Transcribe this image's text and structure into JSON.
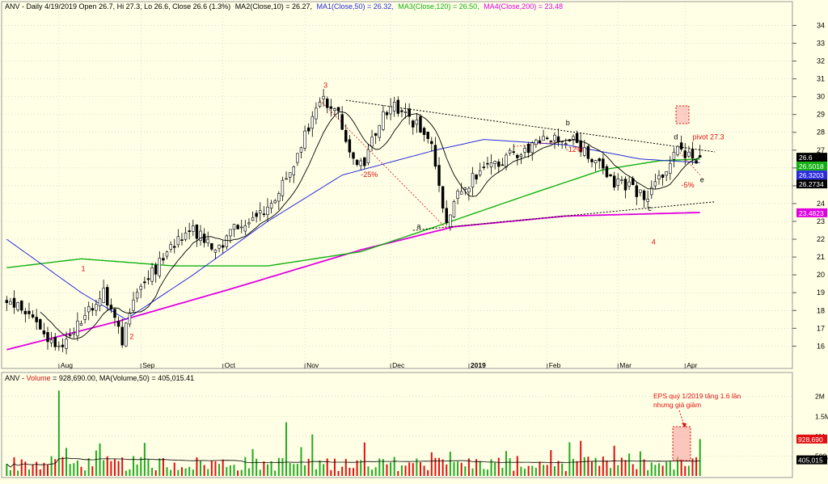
{
  "colors": {
    "background": "#FFFFE6",
    "ma10": "#000000",
    "ma50": "#2A2AE0",
    "ma120": "#12B012",
    "ma200": "#E000E0",
    "annotation": "#E01010",
    "volume_up": "#22AA22",
    "volume_down": "#E01010",
    "grid": "#B8B8B8"
  },
  "price_panel": {
    "header": {
      "prefix": "ANV - Daily 4/19/2019 Open 26.7, Hi 27.3, Lo 26.6, Close 26.6 (1.3%)",
      "ma10": "MA2(Close,10) = 26.27,",
      "ma50": "MA1(Close,50) = 26.32,",
      "ma120": "MA3(Close,120) = 26.50,",
      "ma200": "MA4(Close,200) = 23.48"
    },
    "y_ticks": [
      "16",
      "17",
      "18",
      "19",
      "20",
      "21",
      "22",
      "23",
      "24",
      "25",
      "26",
      "27",
      "28",
      "29",
      "30",
      "31",
      "32",
      "33",
      "34"
    ],
    "x_ticks": [
      "Aug",
      "Sep",
      "Oct",
      "Nov",
      "Dec",
      "2019",
      "Feb",
      "Mar",
      "Apr"
    ],
    "price_badges": [
      {
        "text": "26.6",
        "value": 26.6,
        "color": "#000000"
      },
      {
        "text": "26.5018",
        "value": 26.5018,
        "color": "#12B012"
      },
      {
        "text": "26.3203",
        "value": 26.3203,
        "color": "#2A2AE0"
      },
      {
        "text": "26.2734",
        "value": 26.2734,
        "color": "#000000"
      },
      {
        "text": "23.4823",
        "value": 23.4823,
        "color": "#E000E0"
      }
    ],
    "annotations": [
      {
        "text": "1",
        "date_index": 20,
        "price": 20.2,
        "color": "#E01010"
      },
      {
        "text": "2",
        "date_index": 33,
        "price": 16.4,
        "color": "#E01010"
      },
      {
        "text": "3",
        "date_index": 85,
        "price": 30.5,
        "color": "#E01010"
      },
      {
        "text": "-25%",
        "date_index": 95,
        "price": 25.5,
        "color": "#E01010"
      },
      {
        "text": "a",
        "date_index": 110,
        "price": 22.6,
        "color": "#000000"
      },
      {
        "text": "-12%",
        "date_index": 150,
        "price": 26.9,
        "color": "#E01010"
      },
      {
        "text": "b",
        "date_index": 150,
        "price": 28.4,
        "color": "#000000"
      },
      {
        "text": "c",
        "date_index": 172,
        "price": 23.6,
        "color": "#000000"
      },
      {
        "text": "4",
        "date_index": 173,
        "price": 21.7,
        "color": "#E01010"
      },
      {
        "text": "d",
        "date_index": 179,
        "price": 27.6,
        "color": "#000000"
      },
      {
        "text": "pivot 27.3",
        "date_index": 184,
        "price": 27.6,
        "color": "#E01010"
      },
      {
        "text": "-5%",
        "date_index": 181,
        "price": 24.9,
        "color": "#E01010"
      },
      {
        "text": "e",
        "date_index": 186,
        "price": 25.2,
        "color": "#000000"
      }
    ]
  },
  "volume_panel": {
    "header": {
      "prefix": "ANV - ",
      "volume": "Volume",
      "rest": " = 928,690.00, MA(Volume,50) = 405,015.41"
    },
    "y_ticks": [
      "2M",
      "1.5M",
      "1M",
      "500,000"
    ],
    "volume_badges": [
      {
        "text": "928,690",
        "value": 928690,
        "color": "#E01010"
      },
      {
        "text": "405,015",
        "value": 405015,
        "color": "#000000"
      }
    ],
    "note_line1": "EPS quý 1/2019 tăng 1.6 lần",
    "note_line2": "nhưng giá giảm"
  },
  "chart_data": {
    "type": "candlestick",
    "price_ylim": [
      15.2,
      34.7
    ],
    "volume_ylim": [
      0,
      2300000
    ],
    "moving_averages": [
      "MA(Close,10)",
      "MA(Close,50)",
      "MA(Close,120)",
      "MA(Close,200)"
    ],
    "last_bar": {
      "date": "4/19/2019",
      "open": 26.7,
      "high": 27.3,
      "low": 26.6,
      "close": 26.6,
      "change_pct": 1.3,
      "volume": 928690
    },
    "last_values": {
      "ma10": 26.27,
      "ma50": 26.32,
      "ma120": 26.5,
      "ma200": 23.48,
      "volume_ma50": 405015.41
    },
    "trendlines": [
      {
        "style": "dotted",
        "from": {
          "date_index": 91,
          "price": 29.8
        },
        "to": {
          "date_index": 190,
          "price": 26.9
        }
      },
      {
        "style": "dotted",
        "from": {
          "date_index": 109,
          "price": 22.5
        },
        "to": {
          "date_index": 190,
          "price": 24.1
        }
      }
    ],
    "series_keypoints": [
      {
        "date_index": 0,
        "price": 18.7
      },
      {
        "date_index": 8,
        "price": 17.4
      },
      {
        "date_index": 14,
        "price": 15.7
      },
      {
        "date_index": 22,
        "price": 18.0
      },
      {
        "date_index": 26,
        "price": 19.0
      },
      {
        "date_index": 31,
        "price": 16.4
      },
      {
        "date_index": 34,
        "price": 18.5
      },
      {
        "date_index": 42,
        "price": 21.0
      },
      {
        "date_index": 50,
        "price": 22.6
      },
      {
        "date_index": 56,
        "price": 21.3
      },
      {
        "date_index": 62,
        "price": 22.8
      },
      {
        "date_index": 70,
        "price": 23.5
      },
      {
        "date_index": 78,
        "price": 26.8
      },
      {
        "date_index": 84,
        "price": 29.8
      },
      {
        "date_index": 88,
        "price": 29.6
      },
      {
        "date_index": 92,
        "price": 26.8
      },
      {
        "date_index": 96,
        "price": 26.1
      },
      {
        "date_index": 100,
        "price": 28.7
      },
      {
        "date_index": 104,
        "price": 29.4
      },
      {
        "date_index": 110,
        "price": 28.4
      },
      {
        "date_index": 114,
        "price": 27.4
      },
      {
        "date_index": 118,
        "price": 22.6
      },
      {
        "date_index": 121,
        "price": 24.6
      },
      {
        "date_index": 126,
        "price": 25.6
      },
      {
        "date_index": 132,
        "price": 26.4
      },
      {
        "date_index": 140,
        "price": 27.1
      },
      {
        "date_index": 146,
        "price": 27.6
      },
      {
        "date_index": 152,
        "price": 27.5
      },
      {
        "date_index": 158,
        "price": 26.4
      },
      {
        "date_index": 163,
        "price": 25.2
      },
      {
        "date_index": 168,
        "price": 24.9
      },
      {
        "date_index": 172,
        "price": 24.2
      },
      {
        "date_index": 176,
        "price": 25.8
      },
      {
        "date_index": 180,
        "price": 27.0
      },
      {
        "date_index": 183,
        "price": 26.6
      },
      {
        "date_index": 186,
        "price": 26.6
      }
    ],
    "ma_keypoints": {
      "ma50": [
        {
          "date_index": 0,
          "price": 22.0
        },
        {
          "date_index": 20,
          "price": 19.0
        },
        {
          "date_index": 32,
          "price": 17.5
        },
        {
          "date_index": 50,
          "price": 20.0
        },
        {
          "date_index": 70,
          "price": 23.0
        },
        {
          "date_index": 90,
          "price": 25.6
        },
        {
          "date_index": 115,
          "price": 27.0
        },
        {
          "date_index": 128,
          "price": 27.6
        },
        {
          "date_index": 150,
          "price": 27.3
        },
        {
          "date_index": 170,
          "price": 26.5
        },
        {
          "date_index": 186,
          "price": 26.3
        }
      ],
      "ma120": [
        {
          "date_index": 0,
          "price": 20.4
        },
        {
          "date_index": 20,
          "price": 20.9
        },
        {
          "date_index": 45,
          "price": 20.5
        },
        {
          "date_index": 70,
          "price": 20.5
        },
        {
          "date_index": 95,
          "price": 21.3
        },
        {
          "date_index": 115,
          "price": 22.7
        },
        {
          "date_index": 140,
          "price": 24.5
        },
        {
          "date_index": 160,
          "price": 25.9
        },
        {
          "date_index": 175,
          "price": 26.4
        },
        {
          "date_index": 186,
          "price": 26.5
        }
      ],
      "ma200": [
        {
          "date_index": 0,
          "price": 15.8
        },
        {
          "date_index": 30,
          "price": 17.4
        },
        {
          "date_index": 60,
          "price": 19.2
        },
        {
          "date_index": 95,
          "price": 21.4
        },
        {
          "date_index": 120,
          "price": 22.7
        },
        {
          "date_index": 150,
          "price": 23.3
        },
        {
          "date_index": 186,
          "price": 23.5
        }
      ]
    }
  }
}
